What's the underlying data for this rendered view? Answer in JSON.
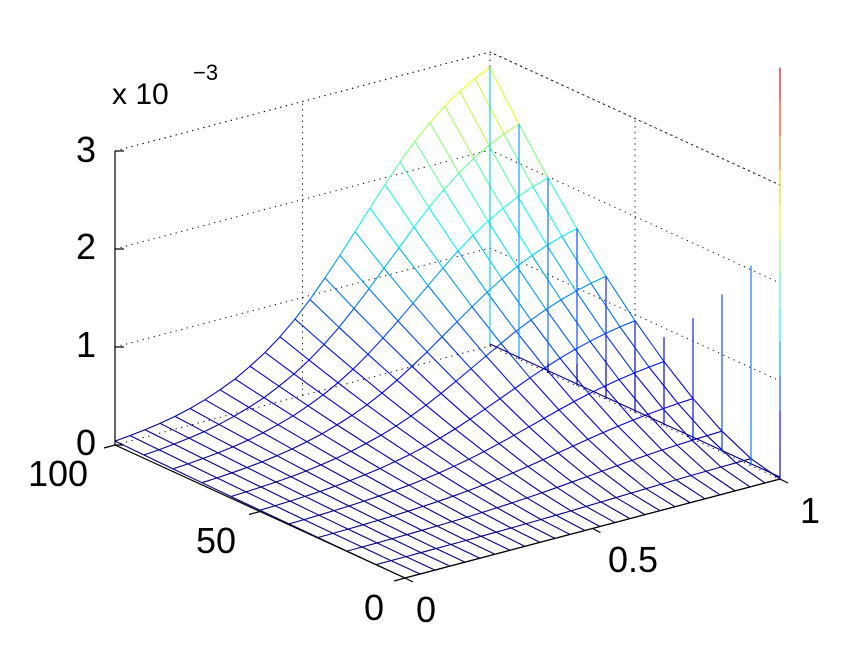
{
  "chart_data": {
    "type": "surface",
    "style": "wireframe mesh",
    "colormap": "jet",
    "x_axis": {
      "ticks": [
        "0",
        "0.5",
        "1"
      ],
      "range": [
        0,
        1
      ]
    },
    "y_axis": {
      "ticks": [
        "0",
        "50",
        "100"
      ],
      "range": [
        0,
        100
      ]
    },
    "z_axis": {
      "ticks": [
        "0",
        "1",
        "2",
        "3"
      ],
      "range": [
        0,
        3
      ]
    },
    "z_multiplier": {
      "base": "x 10",
      "exponent": "−3"
    },
    "grid": true,
    "x_grid_values": [
      0,
      0.04,
      0.08,
      0.12,
      0.16,
      0.2,
      0.24,
      0.28,
      0.32,
      0.36,
      0.4,
      0.44,
      0.48,
      0.52,
      0.56,
      0.6,
      0.64,
      0.68,
      0.72,
      0.76,
      0.8,
      0.84,
      0.88,
      0.92,
      0.96,
      1.0
    ],
    "y_grid_values": [
      0,
      10,
      20,
      30,
      40,
      50,
      60,
      70,
      80,
      90,
      100
    ],
    "z_at_y100_by_x": [
      0.04,
      0.055,
      0.075,
      0.1,
      0.13,
      0.17,
      0.22,
      0.28,
      0.35,
      0.44,
      0.54,
      0.66,
      0.8,
      0.96,
      1.14,
      1.33,
      1.53,
      1.73,
      1.93,
      2.12,
      2.29,
      2.44,
      2.57,
      2.68,
      2.77,
      2.84
    ],
    "spike_x_near": 1.0,
    "spike_peak_z": 4.2
  }
}
